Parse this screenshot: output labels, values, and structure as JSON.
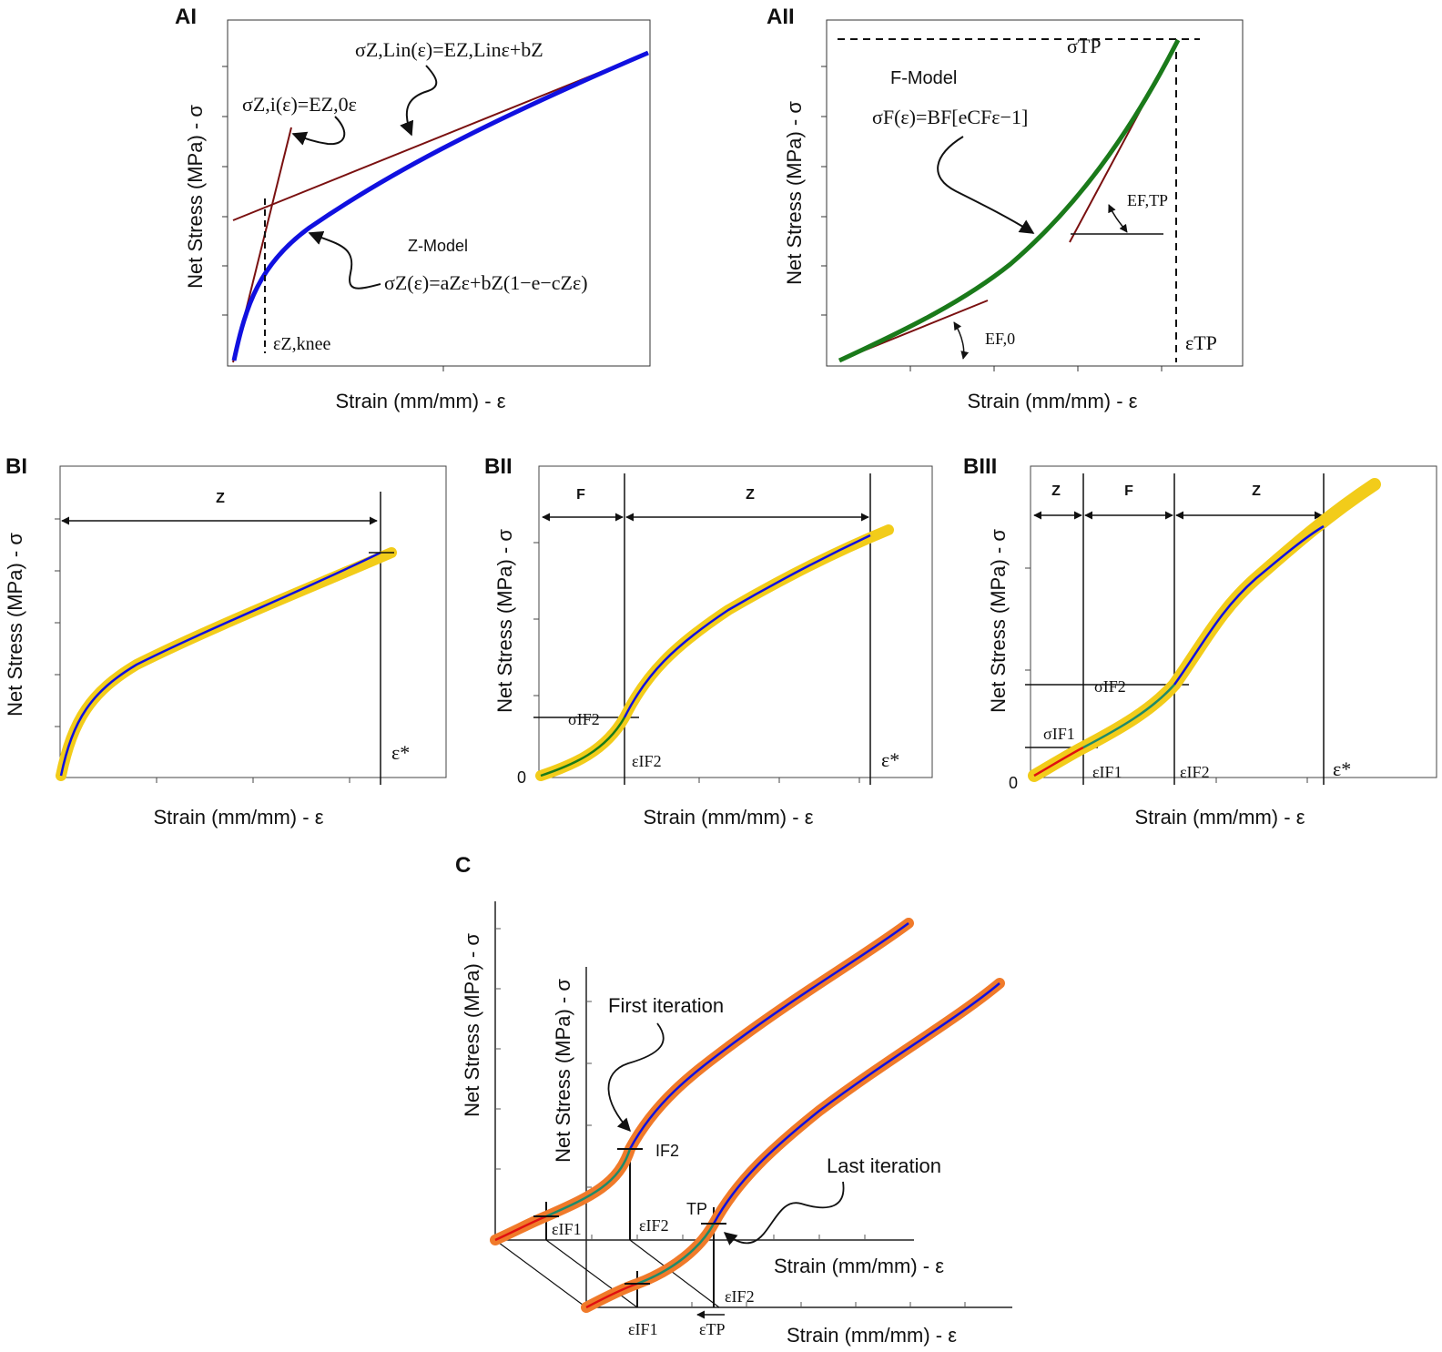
{
  "panels": {
    "AI": {
      "label": "AI",
      "ylabel": "Net Stress (MPa) - σ",
      "xlabel": "Strain (mm/mm) - ε",
      "eq_lin": "σZ,Lin(ε)=EZ,Linε+bZ",
      "eq_init": "σZ,i(ε)=EZ,0ε",
      "model_name": "Z-Model",
      "eq_model": "σZ(ε)=aZε+bZ(1−e−cZε)",
      "knee": "εZ,knee"
    },
    "AII": {
      "label": "AII",
      "ylabel": "Net Stress (MPa) - σ",
      "xlabel": "Strain (mm/mm) - ε",
      "model_name": "F-Model",
      "eq_model": "σF(ε)=BF[eCFε−1]",
      "sigma_tp": "σTP",
      "eps_tp": "εTP",
      "e_ftp": "EF,TP",
      "e_f0": "EF,0"
    },
    "BI": {
      "label": "BI",
      "ylabel": "Net Stress (MPa) - σ",
      "xlabel": "Strain (mm/mm) - ε",
      "zone": "Z",
      "eps_star": "ε*"
    },
    "BII": {
      "label": "BII",
      "ylabel": "Net Stress (MPa) - σ",
      "xlabel": "Strain (mm/mm) - ε",
      "zone1": "F",
      "zone2": "Z",
      "sigma_if2": "σIF2",
      "eps_if2": "εIF2",
      "eps_star": "ε*",
      "zero": "0"
    },
    "BIII": {
      "label": "BIII",
      "ylabel": "Net Stress (MPa) - σ",
      "xlabel": "Strain (mm/mm) - ε",
      "zone1": "Z",
      "zone2": "F",
      "zone3": "Z",
      "sigma_if2": "σIF2",
      "sigma_if1": "σIF1",
      "eps_if1": "εIF1",
      "eps_if2": "εIF2",
      "eps_star": "ε*",
      "zero": "0"
    },
    "C": {
      "label": "C",
      "ylabel_back": "Net Stress (MPa) - σ",
      "ylabel_front": "Net Stress (MPa) - σ",
      "first_iteration": "First iteration",
      "last_iteration": "Last iteration",
      "if2": "IF2",
      "tp": "TP",
      "eps_if1_back": "εIF1",
      "eps_if2_back": "εIF2",
      "eps_if2_front": "εIF2",
      "eps_if1_front": "εIF1",
      "eps_tp": "εTP",
      "xlabel_back": "Strain (mm/mm) - ε",
      "xlabel_front": "Strain (mm/mm) - ε"
    }
  },
  "colors": {
    "z_model": "#1010e0",
    "f_model": "#1a7a1a",
    "tangent": "#7a1010",
    "band_yellow": "#f2cc1a",
    "band_orange": "#f07a2a",
    "red_fit": "#e01010",
    "teal_fit": "#1f8a6a"
  }
}
